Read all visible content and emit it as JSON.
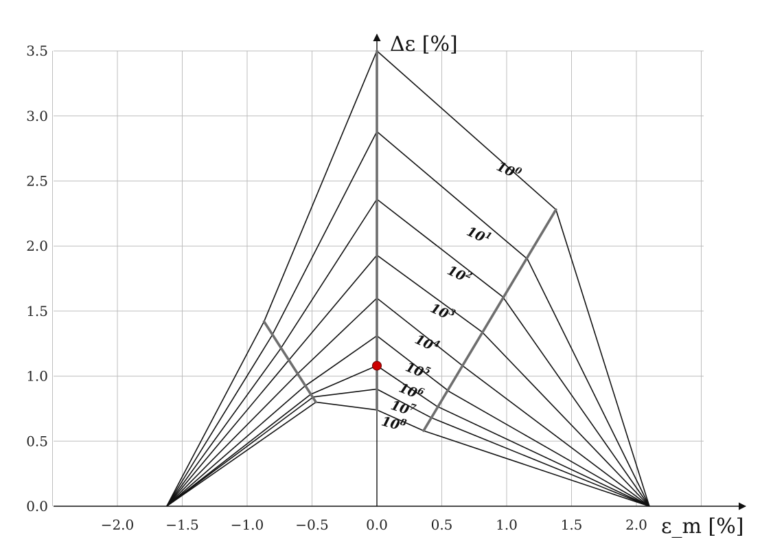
{
  "chart_data": {
    "type": "line",
    "title": "",
    "xlabel": "ε_m [%]",
    "ylabel": "Δε [%]",
    "xlim": [
      -2.5,
      2.5
    ],
    "ylim": [
      0,
      3.5
    ],
    "grid": true,
    "x_ticks": [
      "−2.0",
      "−1.5",
      "−1.0",
      "−0.5",
      "0.0",
      "0.5",
      "1.0",
      "1.5",
      "2.0"
    ],
    "y_ticks": [
      "0.0",
      "0.5",
      "1.0",
      "1.5",
      "2.0",
      "2.5",
      "3.0",
      "3.5"
    ],
    "x_tick_values": [
      -2.0,
      -1.5,
      -1.0,
      -0.5,
      0.0,
      0.5,
      1.0,
      1.5,
      2.0
    ],
    "y_tick_values": [
      0.0,
      0.5,
      1.0,
      1.5,
      2.0,
      2.5,
      3.0,
      3.5
    ],
    "series": [
      {
        "name": "10⁰",
        "exp": "0",
        "points": [
          [
            -1.62,
            0
          ],
          [
            -0.87,
            1.42
          ],
          [
            0,
            3.5
          ],
          [
            1.38,
            2.28
          ],
          [
            2.1,
            0
          ]
        ]
      },
      {
        "name": "10¹",
        "exp": "1",
        "points": [
          [
            -1.62,
            0
          ],
          [
            -0.81,
            1.31
          ],
          [
            0,
            2.88
          ],
          [
            1.16,
            1.9
          ],
          [
            2.1,
            0
          ]
        ]
      },
      {
        "name": "10²",
        "exp": "2",
        "points": [
          [
            -1.62,
            0
          ],
          [
            -0.75,
            1.2
          ],
          [
            0,
            2.36
          ],
          [
            0.97,
            1.61
          ],
          [
            2.1,
            0
          ]
        ]
      },
      {
        "name": "10³",
        "exp": "3",
        "points": [
          [
            -1.62,
            0
          ],
          [
            -0.69,
            1.11
          ],
          [
            0,
            1.93
          ],
          [
            0.81,
            1.34
          ],
          [
            2.1,
            0
          ]
        ]
      },
      {
        "name": "10⁴",
        "exp": "4",
        "points": [
          [
            -1.62,
            0
          ],
          [
            -0.62,
            1.01
          ],
          [
            0,
            1.6
          ],
          [
            0.66,
            1.08
          ],
          [
            2.1,
            0
          ]
        ]
      },
      {
        "name": "10⁵",
        "exp": "5",
        "points": [
          [
            -1.62,
            0
          ],
          [
            -0.56,
            0.92
          ],
          [
            0,
            1.31
          ],
          [
            0.56,
            0.88
          ],
          [
            2.1,
            0
          ]
        ]
      },
      {
        "name": "10⁶",
        "exp": "6",
        "points": [
          [
            -1.62,
            0
          ],
          [
            -0.51,
            0.86
          ],
          [
            0,
            1.08
          ],
          [
            0.46,
            0.77
          ],
          [
            2.1,
            0
          ]
        ]
      },
      {
        "name": "10⁷",
        "exp": "7",
        "points": [
          [
            -1.62,
            0
          ],
          [
            -0.49,
            0.84
          ],
          [
            0,
            0.9
          ],
          [
            0.42,
            0.68
          ],
          [
            2.1,
            0
          ]
        ]
      },
      {
        "name": "10⁸",
        "exp": "8",
        "points": [
          [
            -1.62,
            0
          ],
          [
            -0.47,
            0.8
          ],
          [
            0,
            0.74
          ],
          [
            0.36,
            0.58
          ],
          [
            2.1,
            0
          ]
        ]
      }
    ],
    "guide_lines": [
      {
        "points": [
          [
            -0.87,
            1.42
          ],
          [
            -0.47,
            0.8
          ]
        ]
      },
      {
        "points": [
          [
            1.38,
            2.28
          ],
          [
            0.36,
            0.58
          ]
        ]
      },
      {
        "points": [
          [
            0,
            3.5
          ],
          [
            0,
            0.74
          ]
        ]
      }
    ],
    "marker": {
      "x": 0.0,
      "y": 1.08,
      "color": "#cc0000"
    },
    "label_positions": [
      {
        "exp": "0",
        "x": 1.0,
        "y": 2.55,
        "angle": 25
      },
      {
        "exp": "1",
        "x": 0.77,
        "y": 2.05,
        "angle": 25
      },
      {
        "exp": "2",
        "x": 0.62,
        "y": 1.75,
        "angle": 25
      },
      {
        "exp": "3",
        "x": 0.49,
        "y": 1.46,
        "angle": 25
      },
      {
        "exp": "4",
        "x": 0.37,
        "y": 1.22,
        "angle": 25
      },
      {
        "exp": "5",
        "x": 0.3,
        "y": 1.01,
        "angle": 22
      },
      {
        "exp": "6",
        "x": 0.25,
        "y": 0.85,
        "angle": 22
      },
      {
        "exp": "7",
        "x": 0.19,
        "y": 0.72,
        "angle": 18
      },
      {
        "exp": "8",
        "x": 0.12,
        "y": 0.6,
        "angle": 15
      }
    ],
    "colors": {
      "lines": "#111111",
      "guides": "#6e6e6e",
      "grid": "#bdbdbd",
      "marker": "#cc0000"
    }
  }
}
